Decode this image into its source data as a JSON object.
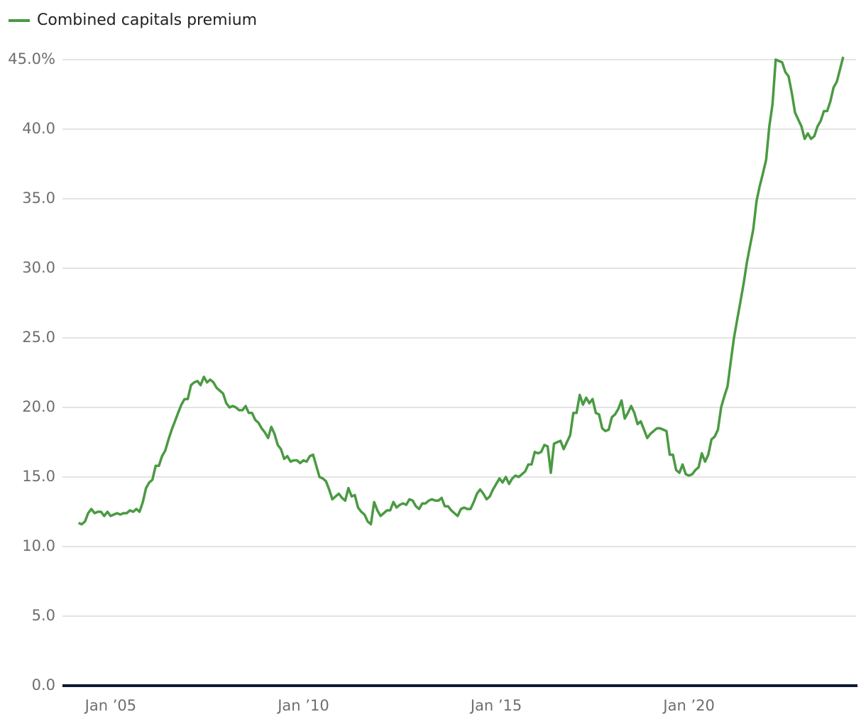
{
  "chart_data": {
    "type": "line",
    "series": [
      {
        "name": "Combined capitals premium",
        "color": "#4a9a42",
        "values": [
          11.7,
          11.6,
          11.8,
          12.4,
          12.7,
          12.4,
          12.5,
          12.5,
          12.2,
          12.5,
          12.2,
          12.3,
          12.4,
          12.3,
          12.4,
          12.4,
          12.6,
          12.5,
          12.7,
          12.5,
          13.2,
          14.2,
          14.6,
          14.8,
          15.8,
          15.8,
          16.5,
          16.9,
          17.7,
          18.4,
          19.0,
          19.6,
          20.2,
          20.6,
          20.6,
          21.6,
          21.8,
          21.9,
          21.6,
          22.2,
          21.8,
          22.0,
          21.8,
          21.4,
          21.2,
          21.0,
          20.3,
          20.0,
          20.1,
          20.0,
          19.8,
          19.8,
          20.1,
          19.6,
          19.6,
          19.1,
          18.9,
          18.5,
          18.2,
          17.8,
          18.6,
          18.1,
          17.3,
          17.0,
          16.3,
          16.5,
          16.1,
          16.2,
          16.2,
          16.0,
          16.2,
          16.1,
          16.5,
          16.6,
          15.8,
          15.0,
          14.9,
          14.7,
          14.1,
          13.4,
          13.6,
          13.8,
          13.5,
          13.3,
          14.2,
          13.6,
          13.7,
          12.8,
          12.5,
          12.3,
          11.8,
          11.6,
          13.2,
          12.6,
          12.2,
          12.4,
          12.6,
          12.6,
          13.2,
          12.8,
          13.0,
          13.1,
          13.0,
          13.4,
          13.3,
          12.9,
          12.7,
          13.1,
          13.1,
          13.3,
          13.4,
          13.3,
          13.3,
          13.5,
          12.9,
          12.9,
          12.6,
          12.4,
          12.2,
          12.7,
          12.8,
          12.7,
          12.7,
          13.2,
          13.8,
          14.1,
          13.8,
          13.4,
          13.6,
          14.1,
          14.5,
          14.9,
          14.6,
          15.0,
          14.5,
          14.9,
          15.1,
          15.0,
          15.2,
          15.4,
          15.9,
          15.9,
          16.8,
          16.7,
          16.8,
          17.3,
          17.2,
          15.3,
          17.4,
          17.5,
          17.6,
          17.0,
          17.5,
          18.0,
          19.6,
          19.6,
          20.9,
          20.2,
          20.7,
          20.3,
          20.6,
          19.6,
          19.5,
          18.5,
          18.3,
          18.4,
          19.3,
          19.5,
          19.9,
          20.5,
          19.2,
          19.6,
          20.1,
          19.6,
          18.8,
          19.0,
          18.4,
          17.8,
          18.1,
          18.3,
          18.5,
          18.5,
          18.4,
          18.3,
          16.6,
          16.6,
          15.5,
          15.3,
          15.9,
          15.2,
          15.1,
          15.2,
          15.5,
          15.7,
          16.7,
          16.1,
          16.6,
          17.7,
          17.9,
          18.4,
          20.0,
          20.8,
          21.5,
          23.3,
          25.0,
          26.3,
          27.6,
          28.9,
          30.4,
          31.6,
          32.8,
          34.8,
          35.9,
          36.8,
          37.8,
          40.2,
          41.8,
          45.0,
          44.9,
          44.8,
          44.1,
          43.8,
          42.6,
          41.2,
          40.7,
          40.2,
          39.3,
          39.7,
          39.3,
          39.5,
          40.2,
          40.6,
          41.3,
          41.3,
          42.0,
          43.0,
          43.4,
          44.3,
          45.2
        ]
      }
    ],
    "x": [
      "2004-03",
      "2004-04",
      "2004-05",
      "2004-06",
      "2004-07",
      "2004-08",
      "2004-09",
      "2004-10",
      "2004-11",
      "2004-12",
      "2005-01",
      "2005-02",
      "2005-03",
      "2005-04",
      "2005-05",
      "2005-06",
      "2005-07",
      "2005-08",
      "2005-09",
      "2005-10",
      "2005-11",
      "2005-12",
      "2006-01",
      "2006-02",
      "2006-03",
      "2006-04",
      "2006-05",
      "2006-06",
      "2006-07",
      "2006-08",
      "2006-09",
      "2006-10",
      "2006-11",
      "2006-12",
      "2007-01",
      "2007-02",
      "2007-03",
      "2007-04",
      "2007-05",
      "2007-06",
      "2007-07",
      "2007-08",
      "2007-09",
      "2007-10",
      "2007-11",
      "2007-12",
      "2008-01",
      "2008-02",
      "2008-03",
      "2008-04",
      "2008-05",
      "2008-06",
      "2008-07",
      "2008-08",
      "2008-09",
      "2008-10",
      "2008-11",
      "2008-12",
      "2009-01",
      "2009-02",
      "2009-03",
      "2009-04",
      "2009-05",
      "2009-06",
      "2009-07",
      "2009-08",
      "2009-09",
      "2009-10",
      "2009-11",
      "2009-12",
      "2010-01",
      "2010-02",
      "2010-03",
      "2010-04",
      "2010-05",
      "2010-06",
      "2010-07",
      "2010-08",
      "2010-09",
      "2010-10",
      "2010-11",
      "2010-12",
      "2011-01",
      "2011-02",
      "2011-03",
      "2011-04",
      "2011-05",
      "2011-06",
      "2011-07",
      "2011-08",
      "2011-09",
      "2011-10",
      "2011-11",
      "2011-12",
      "2012-01",
      "2012-02",
      "2012-03",
      "2012-04",
      "2012-05",
      "2012-06",
      "2012-07",
      "2012-08",
      "2012-09",
      "2012-10",
      "2012-11",
      "2012-12",
      "2013-01",
      "2013-02",
      "2013-03",
      "2013-04",
      "2013-05",
      "2013-06",
      "2013-07",
      "2013-08",
      "2013-09",
      "2013-10",
      "2013-11",
      "2013-12",
      "2014-01",
      "2014-02",
      "2014-03",
      "2014-04",
      "2014-05",
      "2014-06",
      "2014-07",
      "2014-08",
      "2014-09",
      "2014-10",
      "2014-11",
      "2014-12",
      "2015-01",
      "2015-02",
      "2015-03",
      "2015-04",
      "2015-05",
      "2015-06",
      "2015-07",
      "2015-08",
      "2015-09",
      "2015-10",
      "2015-11",
      "2015-12",
      "2016-01",
      "2016-02",
      "2016-03",
      "2016-04",
      "2016-05",
      "2016-06",
      "2016-07",
      "2016-08",
      "2016-09",
      "2016-10",
      "2016-11",
      "2016-12",
      "2017-01",
      "2017-02",
      "2017-03",
      "2017-04",
      "2017-05",
      "2017-06",
      "2017-07",
      "2017-08",
      "2017-09",
      "2017-10",
      "2017-11",
      "2017-12",
      "2018-01",
      "2018-02",
      "2018-03",
      "2018-04",
      "2018-05",
      "2018-06",
      "2018-07",
      "2018-08",
      "2018-09",
      "2018-10",
      "2018-11",
      "2018-12",
      "2019-01",
      "2019-02",
      "2019-03",
      "2019-04",
      "2019-05",
      "2019-06",
      "2019-07",
      "2019-08",
      "2019-09",
      "2019-10",
      "2019-11",
      "2019-12",
      "2020-01",
      "2020-02",
      "2020-03",
      "2020-04",
      "2020-05",
      "2020-06",
      "2020-07",
      "2020-08",
      "2020-09",
      "2020-10",
      "2020-11",
      "2020-12",
      "2021-01",
      "2021-02",
      "2021-03",
      "2021-04",
      "2021-05",
      "2021-06",
      "2021-07",
      "2021-08",
      "2021-09",
      "2021-10",
      "2021-11",
      "2021-12",
      "2022-01",
      "2022-02",
      "2022-03",
      "2022-04",
      "2022-05",
      "2022-06",
      "2022-07",
      "2022-08",
      "2022-09",
      "2022-10",
      "2022-11",
      "2022-12",
      "2023-01",
      "2023-02",
      "2023-03",
      "2023-04",
      "2023-05",
      "2023-06",
      "2023-07",
      "2023-08",
      "2023-09",
      "2023-10",
      "2023-11",
      "2023-12",
      "2024-01"
    ],
    "xlim": [
      "2003-10",
      "2024-05"
    ],
    "xticks": [
      {
        "value": "2005-01",
        "label": "Jan ’05"
      },
      {
        "value": "2010-01",
        "label": "Jan ’10"
      },
      {
        "value": "2015-01",
        "label": "Jan ’15"
      },
      {
        "value": "2020-01",
        "label": "Jan ’20"
      }
    ],
    "ylim": [
      0,
      45
    ],
    "yticks": [
      {
        "value": 0,
        "label": "0.0"
      },
      {
        "value": 5,
        "label": "5.0"
      },
      {
        "value": 10,
        "label": "10.0"
      },
      {
        "value": 15,
        "label": "15.0"
      },
      {
        "value": 20,
        "label": "20.0"
      },
      {
        "value": 25,
        "label": "25.0"
      },
      {
        "value": 30,
        "label": "30.0"
      },
      {
        "value": 35,
        "label": "35.0"
      },
      {
        "value": 40,
        "label": "40.0"
      },
      {
        "value": 45,
        "label": "45.0%"
      }
    ],
    "grid": true,
    "legend": "top-left"
  }
}
